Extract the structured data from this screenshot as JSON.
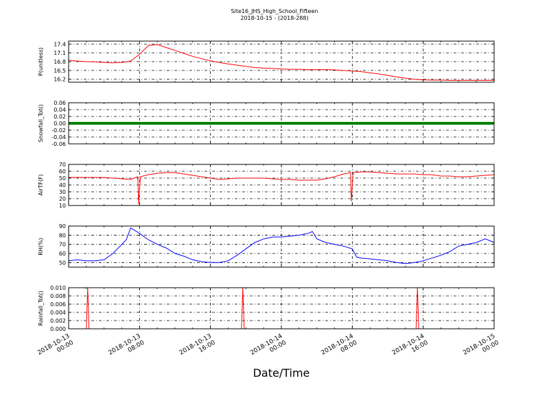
{
  "chart_data": {
    "type": "line",
    "title": "Site16_JHS_High_School_Fifteen",
    "subtitle": "2018-10-15 - (2018-288)",
    "xlabel": "Date/Time",
    "x_ticks": [
      [
        "2018-10-13",
        "00:00"
      ],
      [
        "2018-10-13",
        "08:00"
      ],
      [
        "2018-10-13",
        "16:00"
      ],
      [
        "2018-10-14",
        "00:00"
      ],
      [
        "2018-10-14",
        "08:00"
      ],
      [
        "2018-10-14",
        "16:00"
      ],
      [
        "2018-10-15",
        "00:00"
      ]
    ],
    "xlim_hours": [
      0,
      48
    ],
    "grid": true,
    "panels": [
      {
        "ylabel": "P(unitless)",
        "color": "#ff0000",
        "ylim": [
          16.1,
          17.5
        ],
        "yticks": [
          "16.2",
          "16.5",
          "16.8",
          "17.1",
          "17.4"
        ],
        "points": [
          [
            0,
            16.85
          ],
          [
            1,
            16.82
          ],
          [
            2,
            16.8
          ],
          [
            3,
            16.79
          ],
          [
            4,
            16.77
          ],
          [
            5,
            16.76
          ],
          [
            6,
            16.77
          ],
          [
            7,
            16.82
          ],
          [
            8,
            17.05
          ],
          [
            9,
            17.35
          ],
          [
            10,
            17.38
          ],
          [
            11,
            17.28
          ],
          [
            12,
            17.18
          ],
          [
            13,
            17.08
          ],
          [
            14,
            16.98
          ],
          [
            15,
            16.9
          ],
          [
            16,
            16.83
          ],
          [
            17,
            16.77
          ],
          [
            18,
            16.72
          ],
          [
            19,
            16.68
          ],
          [
            20,
            16.64
          ],
          [
            21,
            16.6
          ],
          [
            22,
            16.58
          ],
          [
            23,
            16.57
          ],
          [
            24,
            16.55
          ],
          [
            25,
            16.54
          ],
          [
            26,
            16.54
          ],
          [
            27,
            16.53
          ],
          [
            28,
            16.53
          ],
          [
            29,
            16.53
          ],
          [
            30,
            16.52
          ],
          [
            31,
            16.5
          ],
          [
            32,
            16.48
          ],
          [
            33,
            16.46
          ],
          [
            34,
            16.42
          ],
          [
            35,
            16.38
          ],
          [
            36,
            16.33
          ],
          [
            37,
            16.28
          ],
          [
            38,
            16.24
          ],
          [
            39,
            16.2
          ],
          [
            40,
            16.18
          ],
          [
            41,
            16.17
          ],
          [
            42,
            16.17
          ],
          [
            43,
            16.16
          ],
          [
            44,
            16.16
          ],
          [
            45,
            16.16
          ],
          [
            46,
            16.16
          ],
          [
            47,
            16.16
          ],
          [
            48,
            16.16
          ]
        ]
      },
      {
        "ylabel": "Snowfall_Tot()",
        "color": "#008000",
        "ylim": [
          -0.06,
          0.06
        ],
        "yticks": [
          "-0.06",
          "-0.04",
          "-0.02",
          "0.00",
          "0.02",
          "0.04",
          "0.06"
        ],
        "points": [
          [
            0,
            0
          ],
          [
            48,
            0
          ]
        ]
      },
      {
        "ylabel": "AirTF(F)",
        "color": "#ff0000",
        "ylim": [
          10,
          70
        ],
        "yticks": [
          "10",
          "20",
          "30",
          "40",
          "50",
          "60",
          "70"
        ],
        "points": [
          [
            0,
            51
          ],
          [
            2,
            51
          ],
          [
            4,
            51
          ],
          [
            5,
            50
          ],
          [
            6,
            49
          ],
          [
            7,
            48
          ],
          [
            7.8,
            52
          ],
          [
            7.9,
            12
          ],
          [
            8.1,
            52
          ],
          [
            9,
            55
          ],
          [
            10,
            57
          ],
          [
            11,
            58
          ],
          [
            12,
            58
          ],
          [
            13,
            56
          ],
          [
            14,
            54
          ],
          [
            15,
            52
          ],
          [
            16,
            50
          ],
          [
            17,
            48
          ],
          [
            18,
            49
          ],
          [
            19,
            50
          ],
          [
            20,
            50
          ],
          [
            21,
            50
          ],
          [
            22,
            50
          ],
          [
            23,
            49
          ],
          [
            24,
            48
          ],
          [
            25,
            48
          ],
          [
            26,
            47
          ],
          [
            27,
            47
          ],
          [
            28,
            47
          ],
          [
            29,
            49
          ],
          [
            30,
            52
          ],
          [
            31,
            56
          ],
          [
            31.8,
            58
          ],
          [
            31.9,
            16
          ],
          [
            32.1,
            58
          ],
          [
            33,
            59
          ],
          [
            34,
            59
          ],
          [
            35,
            58
          ],
          [
            36,
            57
          ],
          [
            37,
            56
          ],
          [
            38,
            56
          ],
          [
            39,
            56
          ],
          [
            40,
            55
          ],
          [
            41,
            55
          ],
          [
            42,
            53
          ],
          [
            43,
            53
          ],
          [
            44,
            52
          ],
          [
            45,
            52
          ],
          [
            46,
            53
          ],
          [
            47,
            54
          ],
          [
            48,
            55
          ]
        ]
      },
      {
        "ylabel": "RH(%)",
        "color": "#0000ff",
        "ylim": [
          45,
          90
        ],
        "yticks": [
          "50",
          "60",
          "70",
          "80",
          "90"
        ],
        "points": [
          [
            0,
            52
          ],
          [
            1,
            53
          ],
          [
            2,
            52
          ],
          [
            3,
            52
          ],
          [
            4,
            53
          ],
          [
            5,
            60
          ],
          [
            6,
            70
          ],
          [
            6.5,
            75
          ],
          [
            7,
            88
          ],
          [
            7.5,
            85
          ],
          [
            8,
            82
          ],
          [
            9,
            75
          ],
          [
            10,
            70
          ],
          [
            11,
            66
          ],
          [
            12,
            60
          ],
          [
            13,
            57
          ],
          [
            14,
            53
          ],
          [
            15,
            51
          ],
          [
            16,
            50
          ],
          [
            17,
            50
          ],
          [
            18,
            52
          ],
          [
            19,
            58
          ],
          [
            20,
            65
          ],
          [
            21,
            72
          ],
          [
            22,
            76
          ],
          [
            23,
            78
          ],
          [
            24,
            78
          ],
          [
            25,
            79
          ],
          [
            26,
            80
          ],
          [
            27,
            82
          ],
          [
            27.5,
            84
          ],
          [
            28,
            76
          ],
          [
            29,
            72
          ],
          [
            30,
            70
          ],
          [
            31,
            68
          ],
          [
            32,
            65
          ],
          [
            32.5,
            56
          ],
          [
            33,
            55
          ],
          [
            34,
            54
          ],
          [
            35,
            53
          ],
          [
            36,
            52
          ],
          [
            37,
            50
          ],
          [
            38,
            49
          ],
          [
            39,
            50
          ],
          [
            40,
            52
          ],
          [
            41,
            55
          ],
          [
            42,
            58
          ],
          [
            43,
            62
          ],
          [
            44,
            68
          ],
          [
            45,
            70
          ],
          [
            46,
            72
          ],
          [
            47,
            76
          ],
          [
            48,
            72
          ]
        ]
      },
      {
        "ylabel": "Rainfall_Tot()",
        "color": "#ff0000",
        "ylim": [
          0.0,
          0.01
        ],
        "yticks": [
          "0.000",
          "0.002",
          "0.004",
          "0.006",
          "0.008",
          "0.010"
        ],
        "points": [
          [
            0,
            0
          ],
          [
            2,
            0
          ],
          [
            2.15,
            0.01
          ],
          [
            2.3,
            0
          ],
          [
            19.5,
            0
          ],
          [
            19.65,
            0.01
          ],
          [
            19.8,
            0
          ],
          [
            39.2,
            0
          ],
          [
            39.35,
            0.01
          ],
          [
            39.5,
            0
          ],
          [
            48,
            0
          ]
        ]
      }
    ]
  }
}
